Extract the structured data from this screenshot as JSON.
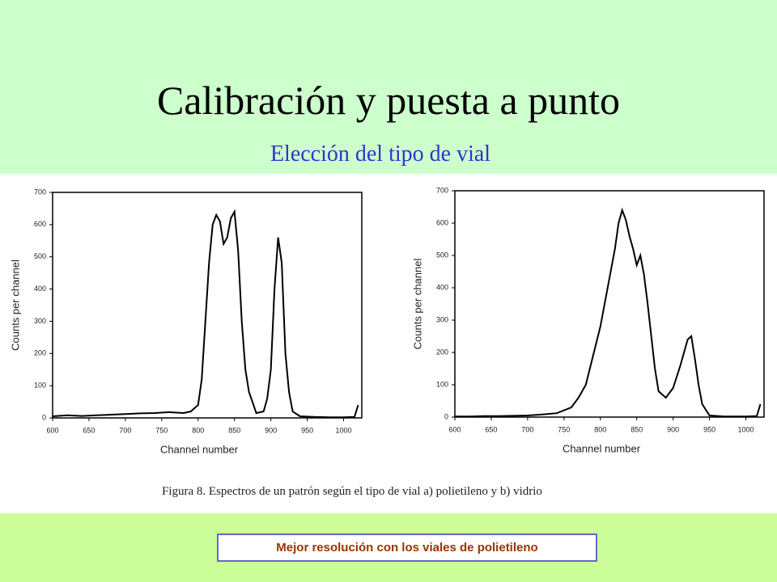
{
  "slide": {
    "title": "Calibración y puesta a punto",
    "subtitle": "Elección del tipo de vial",
    "caption": "Figura 8. Espectros de un patrón según el tipo de vial a) polietileno y b) vidrio",
    "note": "Mejor resolución con los viales de polietileno"
  },
  "chart_data": [
    {
      "type": "line",
      "x_label": "Channel number",
      "y_label": "Counts per channel",
      "x": [
        600,
        620,
        640,
        660,
        680,
        700,
        720,
        740,
        760,
        780,
        790,
        800,
        805,
        810,
        815,
        820,
        825,
        830,
        835,
        840,
        845,
        850,
        855,
        860,
        865,
        870,
        880,
        890,
        895,
        900,
        905,
        910,
        915,
        920,
        925,
        930,
        940,
        960,
        980,
        1000,
        1015,
        1020
      ],
      "series": [
        {
          "color": "#000000",
          "values": [
            5,
            8,
            6,
            8,
            10,
            12,
            14,
            15,
            18,
            15,
            20,
            40,
            120,
            300,
            480,
            600,
            630,
            610,
            540,
            560,
            620,
            640,
            520,
            300,
            150,
            80,
            15,
            20,
            60,
            150,
            400,
            560,
            480,
            200,
            80,
            20,
            5,
            3,
            2,
            2,
            3,
            40
          ]
        }
      ],
      "xlim": [
        600,
        1025
      ],
      "ylim": [
        0,
        700
      ],
      "xticks": [
        600,
        650,
        700,
        750,
        800,
        850,
        900,
        950,
        1000
      ],
      "yticks": [
        0,
        100,
        200,
        300,
        400,
        500,
        600,
        700
      ]
    },
    {
      "type": "line",
      "x_label": "Channel number",
      "y_label": "Counts per channel",
      "x": [
        600,
        620,
        640,
        660,
        680,
        700,
        720,
        740,
        760,
        770,
        780,
        790,
        800,
        810,
        820,
        825,
        830,
        835,
        840,
        845,
        850,
        855,
        860,
        865,
        870,
        875,
        880,
        890,
        900,
        910,
        915,
        920,
        925,
        930,
        935,
        940,
        950,
        970,
        1000,
        1015,
        1020
      ],
      "series": [
        {
          "color": "#000000",
          "values": [
            2,
            2,
            3,
            3,
            4,
            5,
            8,
            12,
            30,
            60,
            100,
            190,
            280,
            400,
            520,
            600,
            640,
            610,
            560,
            520,
            470,
            500,
            440,
            350,
            250,
            150,
            80,
            60,
            90,
            160,
            200,
            240,
            250,
            180,
            100,
            40,
            5,
            2,
            2,
            3,
            40
          ]
        }
      ],
      "xlim": [
        600,
        1025
      ],
      "ylim": [
        0,
        700
      ],
      "xticks": [
        600,
        650,
        700,
        750,
        800,
        850,
        900,
        950,
        1000
      ],
      "yticks": [
        0,
        100,
        200,
        300,
        400,
        500,
        600,
        700
      ]
    }
  ]
}
